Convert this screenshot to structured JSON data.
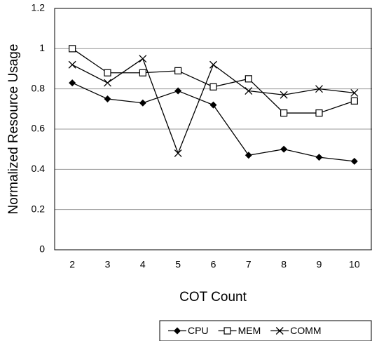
{
  "chart_data": {
    "type": "line",
    "x_label": "COT Count",
    "y_label": "Normalized Resource Usage",
    "categories": [
      "2",
      "3",
      "4",
      "5",
      "6",
      "7",
      "8",
      "9",
      "10"
    ],
    "series": [
      {
        "name": "CPU",
        "color": "#000000",
        "marker": "diamond",
        "values": [
          0.83,
          0.75,
          0.73,
          0.79,
          0.72,
          0.47,
          0.5,
          0.46,
          0.44
        ]
      },
      {
        "name": "MEM",
        "color": "#000000",
        "marker": "square",
        "values": [
          1.0,
          0.88,
          0.88,
          0.89,
          0.81,
          0.85,
          0.68,
          0.68,
          0.74
        ]
      },
      {
        "name": "COMM",
        "color": "#000000",
        "marker": "x",
        "values": [
          0.92,
          0.83,
          0.95,
          0.48,
          0.92,
          0.79,
          0.77,
          0.8,
          0.78
        ]
      }
    ],
    "ylim": [
      0,
      1.2
    ],
    "yticks": [
      0,
      0.2,
      0.4,
      0.6,
      0.8,
      1,
      1.2
    ],
    "grid": true,
    "legend": "bottom-right"
  }
}
